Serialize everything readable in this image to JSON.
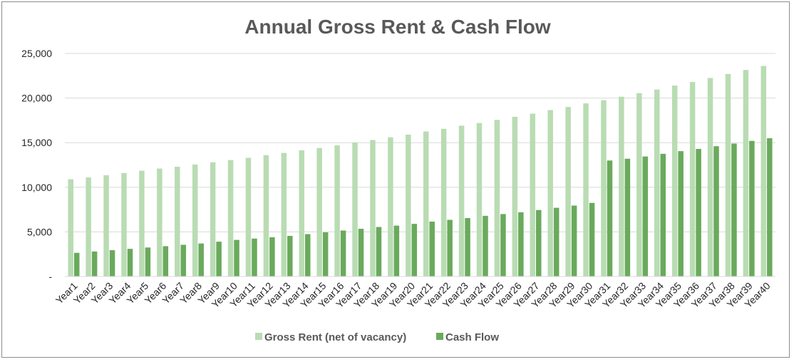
{
  "colors": {
    "gross": "#b9dcb3",
    "cash": "#6aaa5c",
    "grid": "#d9d9d9",
    "title": "#595959",
    "text": "#262626"
  },
  "chart_data": {
    "type": "bar",
    "title": "Annual Gross Rent & Cash Flow",
    "xlabel": "",
    "ylabel": "",
    "ylim": [
      0,
      25000
    ],
    "yticks": [
      0,
      5000,
      10000,
      15000,
      20000,
      25000
    ],
    "ytick_labels": [
      "-",
      "5,000",
      "10,000",
      "15,000",
      "20,000",
      "25,000"
    ],
    "grid": true,
    "legend_position": "bottom",
    "categories": [
      "Year1",
      "Year2",
      "Year3",
      "Year4",
      "Year5",
      "Year6",
      "Year7",
      "Year8",
      "Year9",
      "Year10",
      "Year11",
      "Year12",
      "Year13",
      "Year14",
      "Year15",
      "Year16",
      "Year17",
      "Year18",
      "Year19",
      "Year20",
      "Year21",
      "Year22",
      "Year23",
      "Year24",
      "Year25",
      "Year26",
      "Year27",
      "Year28",
      "Year29",
      "Year30",
      "Year31",
      "Year32",
      "Year33",
      "Year34",
      "Year35",
      "Year36",
      "Year37",
      "Year38",
      "Year39",
      "Year40"
    ],
    "series": [
      {
        "name": "Gross Rent (net of vacancy)",
        "color": "#b9dcb3",
        "values": [
          10900,
          11100,
          11350,
          11600,
          11850,
          12100,
          12300,
          12550,
          12800,
          13050,
          13300,
          13600,
          13850,
          14150,
          14400,
          14700,
          15000,
          15300,
          15600,
          15900,
          16250,
          16550,
          16900,
          17200,
          17550,
          17900,
          18250,
          18650,
          19000,
          19400,
          19750,
          20150,
          20550,
          20950,
          21400,
          21800,
          22250,
          22700,
          23150,
          23600
        ]
      },
      {
        "name": "Cash Flow",
        "color": "#6aaa5c",
        "values": [
          2650,
          2800,
          2950,
          3100,
          3250,
          3400,
          3550,
          3700,
          3900,
          4100,
          4250,
          4400,
          4550,
          4750,
          4950,
          5150,
          5350,
          5550,
          5700,
          5900,
          6150,
          6350,
          6550,
          6800,
          7000,
          7200,
          7450,
          7700,
          7950,
          8250,
          13000,
          13200,
          13450,
          13750,
          14050,
          14300,
          14600,
          14900,
          15200,
          15500
        ]
      }
    ]
  }
}
